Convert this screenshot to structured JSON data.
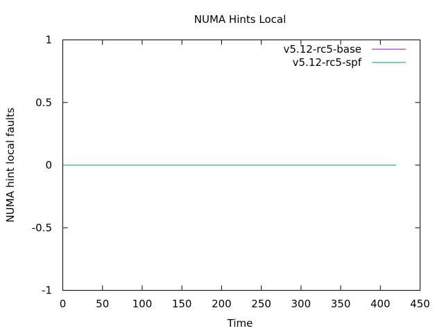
{
  "chart_data": {
    "type": "line",
    "title": "NUMA Hints Local",
    "xlabel": "Time",
    "ylabel": "NUMA hint local faults",
    "xlim": [
      0,
      450
    ],
    "ylim": [
      -1,
      1
    ],
    "xticks": [
      0,
      50,
      100,
      150,
      200,
      250,
      300,
      350,
      400,
      450
    ],
    "yticks": [
      1,
      0.5,
      0,
      -0.5,
      -1
    ],
    "grid": false,
    "legend_position": "top-right",
    "series": [
      {
        "name": "v5.12-rc5-base",
        "color": "#9400d3",
        "x": [
          0,
          420
        ],
        "y": [
          0,
          0
        ]
      },
      {
        "name": "v5.12-rc5-spf",
        "color": "#009e73",
        "x": [
          0,
          420
        ],
        "y": [
          0,
          0
        ]
      }
    ]
  }
}
